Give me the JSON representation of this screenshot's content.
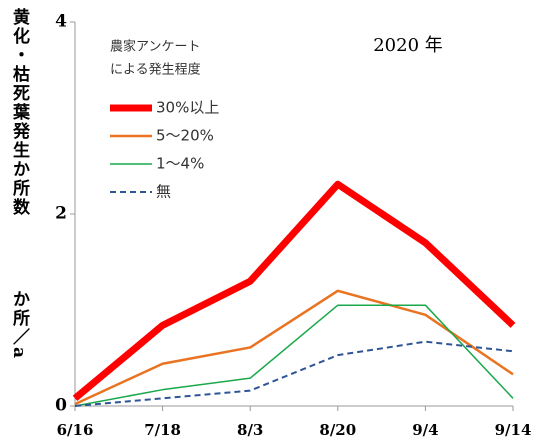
{
  "chart_data": {
    "type": "line",
    "title": "2020 年",
    "y_label_lines": [
      "黄化・枯死葉発生か所数",
      "か所／a"
    ],
    "legend_title_lines": [
      "農家アンケート",
      "による発生程度"
    ],
    "categories": [
      "6/16",
      "7/18",
      "8/3",
      "8/20",
      "9/4",
      "9/14"
    ],
    "ylim": [
      0,
      4
    ],
    "yticks": [
      0,
      2,
      4
    ],
    "series": [
      {
        "name": "30%以上",
        "color": "#ff0000",
        "width": 7,
        "dash": false,
        "values": [
          0.08,
          0.84,
          1.3,
          2.31,
          1.7,
          0.84
        ]
      },
      {
        "name": "5〜20%",
        "color": "#e97321",
        "width": 2.5,
        "dash": false,
        "values": [
          0.02,
          0.44,
          0.61,
          1.2,
          0.95,
          0.33
        ]
      },
      {
        "name": "1〜4%",
        "color": "#1aa84a",
        "width": 1.5,
        "dash": false,
        "values": [
          0.0,
          0.17,
          0.29,
          1.05,
          1.05,
          0.08
        ]
      },
      {
        "name": "無",
        "color": "#2f5597",
        "width": 2,
        "dash": true,
        "values": [
          0.0,
          0.08,
          0.16,
          0.53,
          0.67,
          0.57
        ]
      }
    ]
  }
}
